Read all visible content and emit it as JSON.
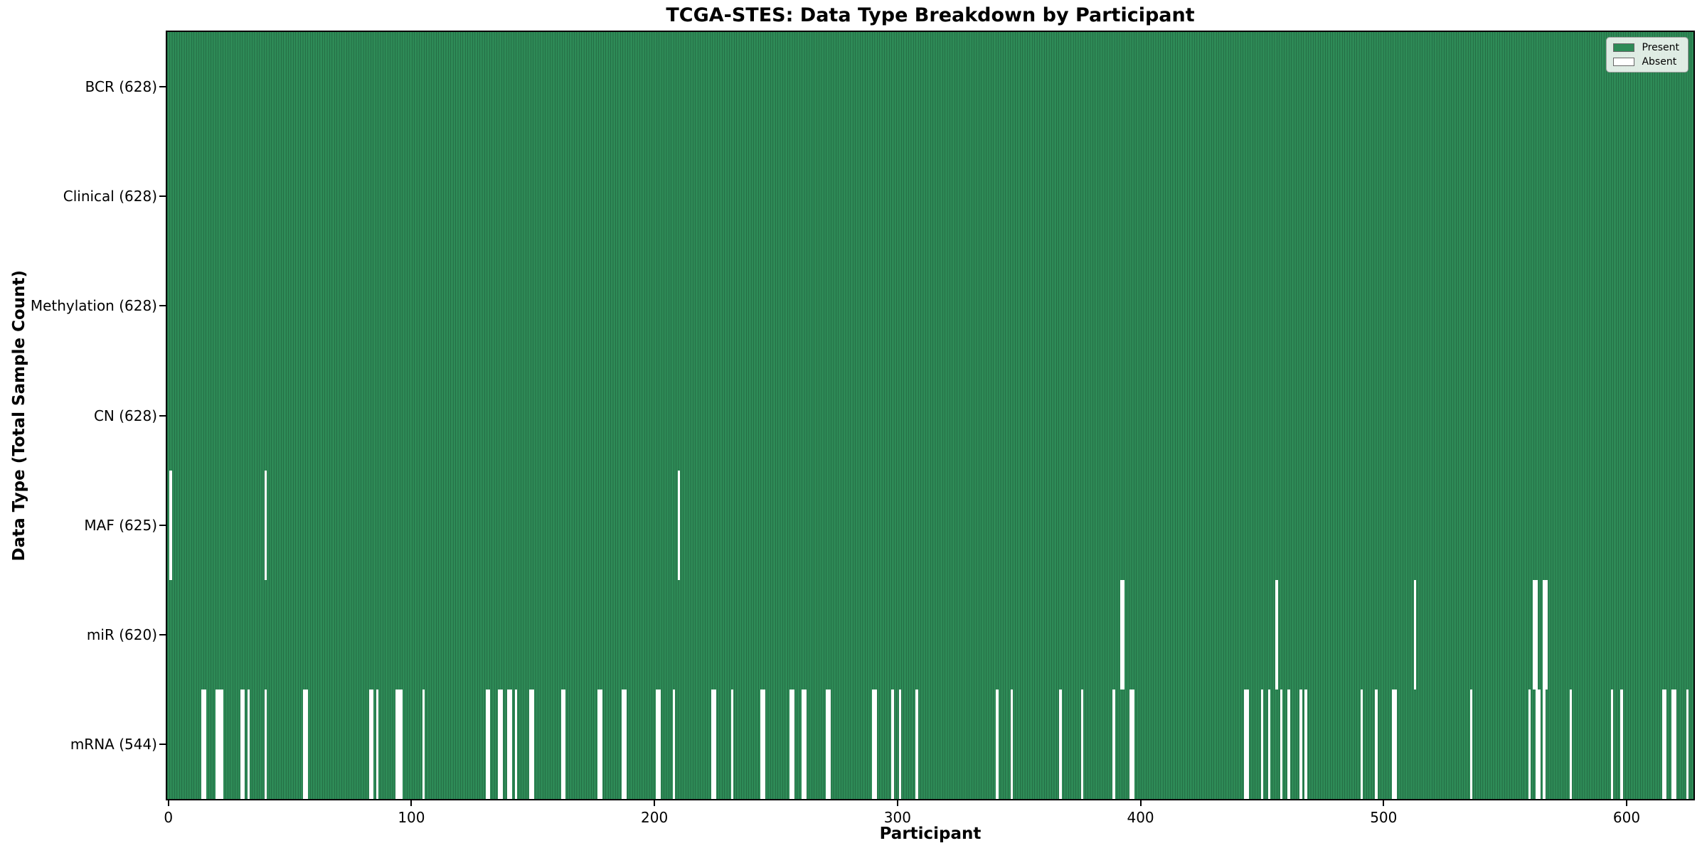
{
  "title": "TCGA-STES: Data Type Breakdown by Participant",
  "legend": {
    "present_label": "Present",
    "absent_label": "Absent"
  },
  "chart_data": {
    "type": "heatmap",
    "title": "TCGA-STES: Data Type Breakdown by Participant",
    "xlabel": "Participant",
    "ylabel": "Data Type (Total Sample Count)",
    "x_ticks": [
      0,
      100,
      200,
      300,
      400,
      500,
      600
    ],
    "x_range": [
      -0.5,
      627.5
    ],
    "n_participants": 628,
    "grid": false,
    "legend_position": "upper right",
    "legend_entries": [
      {
        "label": "Present",
        "color": "#2E8B57"
      },
      {
        "label": "Absent",
        "color": "#ffffff"
      }
    ],
    "colors": {
      "present_fill": "#2E8B57",
      "present_edge": "#1d5c3c",
      "absent_fill": "#ffffff",
      "row_divider": "#262626",
      "axis_line": "#000000",
      "legend_bg": "#f8fbf8",
      "legend_border": "#a3a3a3"
    },
    "rows": [
      {
        "label": "BCR (628)",
        "name": "BCR",
        "total": 628,
        "absent": []
      },
      {
        "label": "Clinical (628)",
        "name": "Clinical",
        "total": 628,
        "absent": []
      },
      {
        "label": "Methylation (628)",
        "name": "Methylation",
        "total": 628,
        "absent": []
      },
      {
        "label": "CN (628)",
        "name": "CN",
        "total": 628,
        "absent": []
      },
      {
        "label": "MAF (625)",
        "name": "MAF",
        "total": 625,
        "absent": [
          1,
          40,
          210
        ]
      },
      {
        "label": "miR (620)",
        "name": "miR",
        "total": 620,
        "absent": [
          392,
          393,
          456,
          513,
          562,
          563,
          566,
          567
        ]
      },
      {
        "label": "mRNA (544)",
        "name": "mRNA",
        "total": 544,
        "absent": [
          14,
          15,
          20,
          21,
          22,
          30,
          31,
          33,
          40,
          56,
          57,
          83,
          84,
          86,
          94,
          95,
          96,
          105,
          131,
          132,
          136,
          137,
          140,
          141,
          143,
          149,
          150,
          162,
          163,
          177,
          178,
          187,
          188,
          201,
          202,
          208,
          224,
          225,
          232,
          244,
          245,
          256,
          257,
          261,
          262,
          271,
          272,
          290,
          291,
          298,
          301,
          308,
          341,
          347,
          367,
          376,
          389,
          396,
          397,
          443,
          444,
          450,
          453,
          458,
          461,
          466,
          468,
          491,
          497,
          504,
          505,
          536,
          560,
          563,
          564,
          566,
          577,
          594,
          598,
          615,
          616,
          619,
          620,
          625
        ]
      }
    ]
  }
}
